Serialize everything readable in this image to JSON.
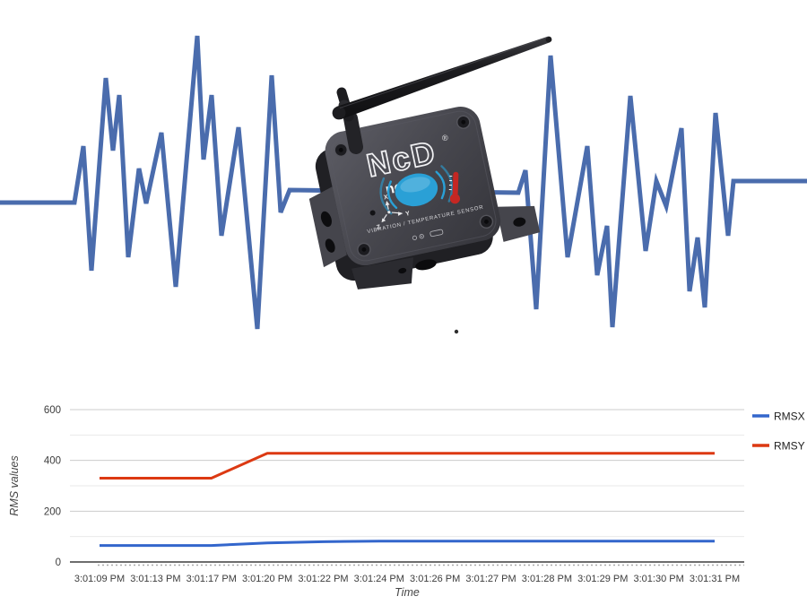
{
  "hero": {
    "waveform": {
      "color": "#4a6cad",
      "stroke_width": 5,
      "points": [
        [
          0,
          226
        ],
        [
          83,
          226
        ],
        [
          93,
          163
        ],
        [
          102,
          302
        ],
        [
          118,
          87
        ],
        [
          126,
          168
        ],
        [
          133,
          106
        ],
        [
          143,
          287
        ],
        [
          155,
          188
        ],
        [
          163,
          227
        ],
        [
          180,
          148
        ],
        [
          196,
          320
        ],
        [
          220,
          40
        ],
        [
          227,
          178
        ],
        [
          236,
          106
        ],
        [
          247,
          263
        ],
        [
          266,
          142
        ],
        [
          287,
          367
        ],
        [
          303,
          84
        ],
        [
          313,
          237
        ],
        [
          323,
          212
        ],
        [
          578,
          215
        ],
        [
          586,
          190
        ],
        [
          598,
          345
        ],
        [
          614,
          62
        ],
        [
          633,
          287
        ],
        [
          655,
          163
        ],
        [
          666,
          307
        ],
        [
          677,
          252
        ],
        [
          683,
          365
        ],
        [
          703,
          107
        ],
        [
          720,
          280
        ],
        [
          732,
          202
        ],
        [
          743,
          230
        ],
        [
          760,
          143
        ],
        [
          769,
          325
        ],
        [
          778,
          265
        ],
        [
          786,
          343
        ],
        [
          798,
          126
        ],
        [
          812,
          263
        ],
        [
          818,
          202
        ],
        [
          900,
          202
        ]
      ]
    },
    "device": {
      "logo_text": "NcD",
      "registered_mark": "®",
      "brand_text": "ncd.io",
      "product_label": "VIBRATION / TEMPERATURE SENSOR",
      "axis_x_label": "X",
      "axis_y_label": "Y",
      "axis_z_label": "Z",
      "body_color": "#46464d",
      "button_color": "#2aa0d6",
      "thermometer_color": "#c42723"
    }
  },
  "chart_data": {
    "type": "line",
    "title": "",
    "xlabel": "Time",
    "ylabel": "RMS values",
    "x_categories": [
      "3:01:09 PM",
      "3:01:13 PM",
      "3:01:17 PM",
      "3:01:20 PM",
      "3:01:22 PM",
      "3:01:24 PM",
      "3:01:26 PM",
      "3:01:27 PM",
      "3:01:28 PM",
      "3:01:29 PM",
      "3:01:30 PM",
      "3:01:31 PM"
    ],
    "series": [
      {
        "name": "RMSX",
        "color": "#3366cc",
        "values": [
          65,
          65,
          65,
          75,
          80,
          82,
          82,
          82,
          82,
          82,
          82,
          82
        ]
      },
      {
        "name": "RMSY",
        "color": "#dc3912",
        "values": [
          330,
          330,
          330,
          428,
          428,
          428,
          428,
          428,
          428,
          428,
          428,
          428
        ]
      }
    ],
    "ylim": [
      0,
      600
    ],
    "yticks": [
      0,
      200,
      400,
      600
    ],
    "minor_yticks": [
      100,
      300,
      500
    ],
    "grid": true,
    "legend_position": "right",
    "colors": {
      "major_grid": "#cccccc",
      "minor_grid": "#e9e9e9",
      "axis_line": "#6e6e6e",
      "tick_text": "#3c3c3c",
      "title_text": "#444444"
    }
  }
}
